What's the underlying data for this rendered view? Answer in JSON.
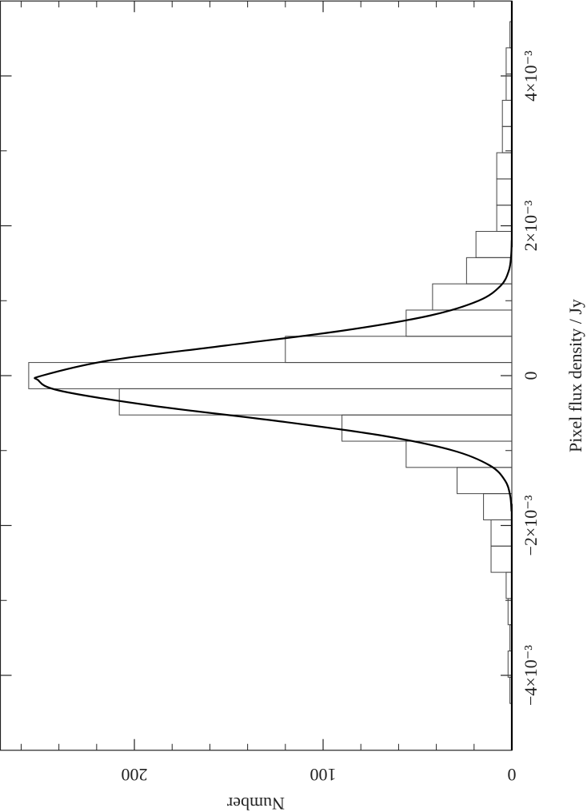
{
  "chart_data": {
    "type": "histogram",
    "xlabel": "Pixel flux density / Jy",
    "ylabel": "Number",
    "bins": [
      -0.004725,
      -0.004375,
      -0.004025,
      -0.003675,
      -0.003325,
      -0.002975,
      -0.002625,
      -0.002275,
      -0.001925,
      -0.001575,
      -0.001225,
      -0.000875,
      -0.000525,
      -0.000175,
      0.000175,
      0.000525,
      0.000875,
      0.001225,
      0.001575,
      0.001925,
      0.002275,
      0.002625,
      0.002975,
      0.003325,
      0.003675,
      0.004025,
      0.004375,
      0.004725
    ],
    "values": [
      0,
      1,
      2,
      1,
      2,
      3,
      11,
      11,
      15,
      29,
      56,
      90,
      208,
      256,
      120,
      56,
      42,
      24,
      19,
      8,
      8,
      8,
      5,
      5,
      3,
      3,
      1
    ],
    "color": "#444444",
    "series": [
      {
        "type": "line",
        "color": "#000000",
        "x": [
          -0.005,
          -0.002,
          -0.0018,
          -0.0016,
          -0.0014,
          -0.0012,
          -0.001,
          -0.0008,
          -0.0006,
          -0.0004,
          -0.0002,
          -6e-05,
          0.0,
          0.0002,
          0.0004,
          0.0006,
          0.0008,
          0.001,
          0.0012,
          0.0014,
          0.0016,
          0.0018,
          0.002,
          0.005
        ],
        "values": [
          0,
          0.03,
          0.2,
          0.9,
          3.6,
          11.6,
          31.1,
          68.8,
          126.0,
          191.0,
          239.7,
          251,
          248.9,
          213.9,
          152.2,
          89.7,
          43.7,
          17.6,
          5.9,
          1.6,
          0.37,
          0.07,
          0.01,
          0
        ]
      }
    ],
    "xlim": [
      -0.005,
      0.005
    ],
    "xticks": [
      {
        "value": -0.004,
        "label": "−4×10⁻³"
      },
      {
        "value": -0.002,
        "label": "−2×10⁻³"
      },
      0,
      {
        "value": 0.002,
        "label": "2×10⁻³"
      },
      {
        "value": 0.004,
        "label": "4×10⁻³"
      }
    ],
    "xminorticks": [
      -0.003,
      -0.001,
      0.001,
      0.003
    ],
    "ylim": [
      0,
      271
    ],
    "yticks": [
      0,
      100,
      200
    ],
    "yminorticks": [
      20,
      40,
      60,
      80,
      120,
      140,
      160,
      180,
      220,
      240,
      260
    ]
  }
}
